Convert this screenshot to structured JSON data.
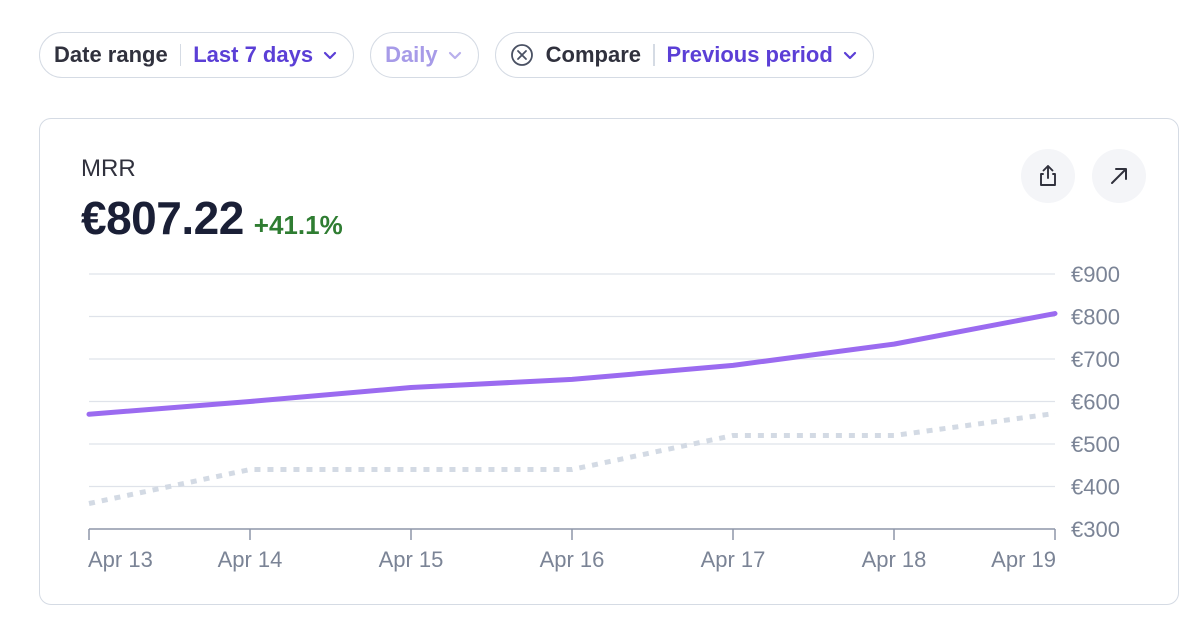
{
  "filters": {
    "date_range": {
      "label": "Date range",
      "value": "Last 7 days"
    },
    "interval": {
      "value": "Daily"
    },
    "compare": {
      "label": "Compare",
      "value": "Previous period"
    }
  },
  "card": {
    "metric_name": "MRR",
    "metric_value": "€807.22",
    "metric_change": "+41.1%",
    "actions": {
      "share_icon": "share-icon",
      "open_icon": "arrow-up-right-icon"
    }
  },
  "colors": {
    "accent": "#5b3fd6",
    "current_line": "#9b6bf0",
    "previous_line": "#d3dae4",
    "positive": "#2f7d32"
  },
  "chart_data": {
    "type": "line",
    "x": [
      "Apr 13",
      "Apr 14",
      "Apr 15",
      "Apr 16",
      "Apr 17",
      "Apr 18",
      "Apr 19"
    ],
    "y_ticks": [
      "€900",
      "€800",
      "€700",
      "€600",
      "€500",
      "€400",
      "€300"
    ],
    "ylim": [
      300,
      900
    ],
    "grid": true,
    "series": [
      {
        "values": [
          570,
          600,
          633,
          652,
          685,
          735,
          807
        ],
        "style": "solid"
      },
      {
        "values": [
          360,
          440,
          440,
          440,
          520,
          520,
          572
        ],
        "style": "dotted"
      }
    ]
  }
}
